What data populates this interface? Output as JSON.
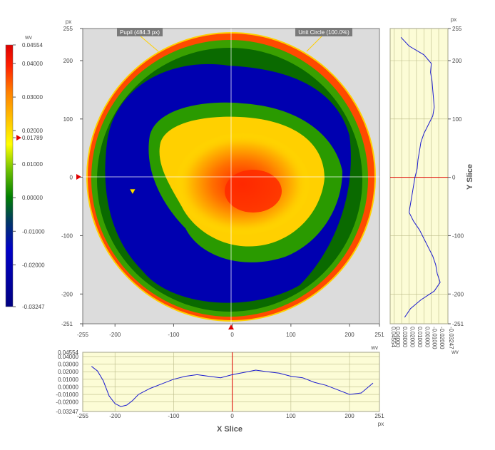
{
  "chart_data": [
    {
      "type": "heatmap",
      "description_role": "wavefront phase map",
      "x_unit": "px",
      "y_unit": "px",
      "xlim": [
        -255,
        251
      ],
      "ylim": [
        -251,
        255
      ],
      "x_ticks": [
        "-255",
        "-200",
        "-100",
        "0",
        "100",
        "200",
        "251"
      ],
      "y_ticks": [
        "255",
        "200",
        "100",
        "0",
        "-100",
        "-200",
        "-251"
      ],
      "x_tick_values": [
        -255,
        -200,
        -100,
        0,
        100,
        200,
        251
      ],
      "y_tick_values": [
        255,
        200,
        100,
        0,
        -100,
        -200,
        -251
      ],
      "annotations": {
        "pupil": "Pupil (484.3 px)",
        "unit_circle": "Unit Circle (100.0%)"
      },
      "pupil_diameter_px": 484.3,
      "markers": {
        "x_cursor": 0,
        "y_cursor": 0,
        "min_marker": [
          -170,
          -25
        ]
      },
      "grid": true
    },
    {
      "type": "colorbar",
      "unit": "wv",
      "min": -0.03247,
      "max": 0.04554,
      "cursor_value": 0.01789,
      "tick_labels": [
        "0.04554",
        "0.04000",
        "0.03000",
        "0.02000",
        "0.01789",
        "0.01000",
        "0.00000",
        "-0.01000",
        "-0.02000",
        "-0.03247"
      ],
      "tick_values": [
        0.04554,
        0.04,
        0.03,
        0.02,
        0.01789,
        0.01,
        0.0,
        -0.01,
        -0.02,
        -0.03247
      ],
      "colors": [
        "#000080",
        "#0000c8",
        "#008000",
        "#44b000",
        "#ffff00",
        "#ffc000",
        "#ff8000",
        "#ff0000",
        "#dd0000"
      ]
    },
    {
      "type": "line",
      "title": "X Slice",
      "x_unit": "px",
      "y_unit": "wv",
      "xlim": [
        -255,
        251
      ],
      "ylim": [
        -0.03247,
        0.04554
      ],
      "x_ticks": [
        "-255",
        "-200",
        "-100",
        "0",
        "100",
        "200",
        "251"
      ],
      "x_tick_values": [
        -255,
        -200,
        -100,
        0,
        100,
        200,
        251
      ],
      "y_ticks": [
        "0.04554",
        "0.04000",
        "0.03000",
        "0.02000",
        "0.01000",
        "0.00000",
        "-0.01000",
        "-0.02000",
        "-0.03247"
      ],
      "y_tick_values": [
        0.04554,
        0.04,
        0.03,
        0.02,
        0.01,
        0.0,
        -0.01,
        -0.02,
        -0.03247
      ],
      "cursor_x": 0,
      "x": [
        -240,
        -230,
        -220,
        -210,
        -200,
        -190,
        -180,
        -170,
        -160,
        -150,
        -140,
        -120,
        -100,
        -80,
        -60,
        -40,
        -20,
        0,
        20,
        40,
        60,
        80,
        100,
        120,
        140,
        160,
        180,
        200,
        220,
        240
      ],
      "values": [
        0.027,
        0.021,
        0.008,
        -0.012,
        -0.022,
        -0.026,
        -0.024,
        -0.018,
        -0.01,
        -0.006,
        -0.002,
        0.004,
        0.01,
        0.014,
        0.016,
        0.014,
        0.012,
        0.016,
        0.019,
        0.022,
        0.02,
        0.018,
        0.014,
        0.012,
        0.006,
        0.002,
        -0.004,
        -0.01,
        -0.008,
        0.005
      ]
    },
    {
      "type": "line",
      "title": "Y Slice",
      "x_unit": "wv",
      "y_unit": "px",
      "ylim": [
        -251,
        255
      ],
      "xlim": [
        -0.03247,
        0.04554
      ],
      "y_ticks": [
        "255",
        "200",
        "100",
        "0",
        "-100",
        "-200",
        "-251"
      ],
      "y_tick_values": [
        255,
        200,
        100,
        0,
        -100,
        -200,
        -251
      ],
      "x_ticks": [
        "0.04554",
        "0.04000",
        "0.03000",
        "0.02000",
        "0.01000",
        "0.00000",
        "-0.01000",
        "-0.02000",
        "-0.03247"
      ],
      "x_tick_values": [
        0.04554,
        0.04,
        0.03,
        0.02,
        0.01,
        0.0,
        -0.01,
        -0.02,
        -0.03247
      ],
      "cursor_y": 0,
      "y": [
        240,
        225,
        210,
        195,
        180,
        165,
        150,
        135,
        120,
        105,
        90,
        75,
        60,
        45,
        30,
        15,
        0,
        -15,
        -30,
        -45,
        -60,
        -75,
        -90,
        -105,
        -120,
        -135,
        -150,
        -165,
        -180,
        -195,
        -210,
        -225,
        -240
      ],
      "values": [
        0.031,
        0.02,
        0.0,
        -0.01,
        -0.009,
        -0.011,
        -0.012,
        -0.013,
        -0.014,
        -0.012,
        -0.006,
        0.0,
        0.004,
        0.006,
        0.008,
        0.009,
        0.012,
        0.014,
        0.016,
        0.018,
        0.02,
        0.014,
        0.006,
        0.0,
        -0.006,
        -0.012,
        -0.016,
        -0.018,
        -0.022,
        -0.014,
        0.004,
        0.018,
        0.026
      ]
    }
  ]
}
